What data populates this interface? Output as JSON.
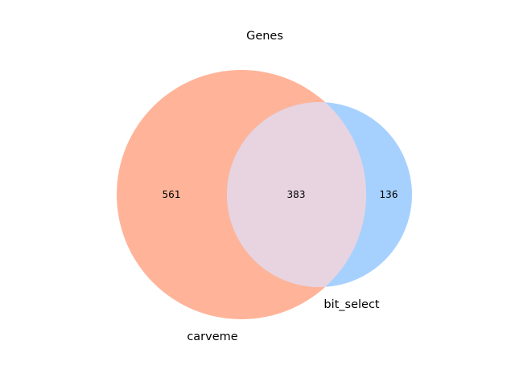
{
  "diagram": {
    "type": "venn2",
    "title": "Genes",
    "sets": [
      {
        "name": "carveme",
        "color": "#ffb499"
      },
      {
        "name": "bit_select",
        "color": "#a6d1ff"
      }
    ],
    "overlap_color": "#e8d4e1",
    "regions": {
      "only_a": "561",
      "both": "383",
      "only_b": "136"
    }
  }
}
